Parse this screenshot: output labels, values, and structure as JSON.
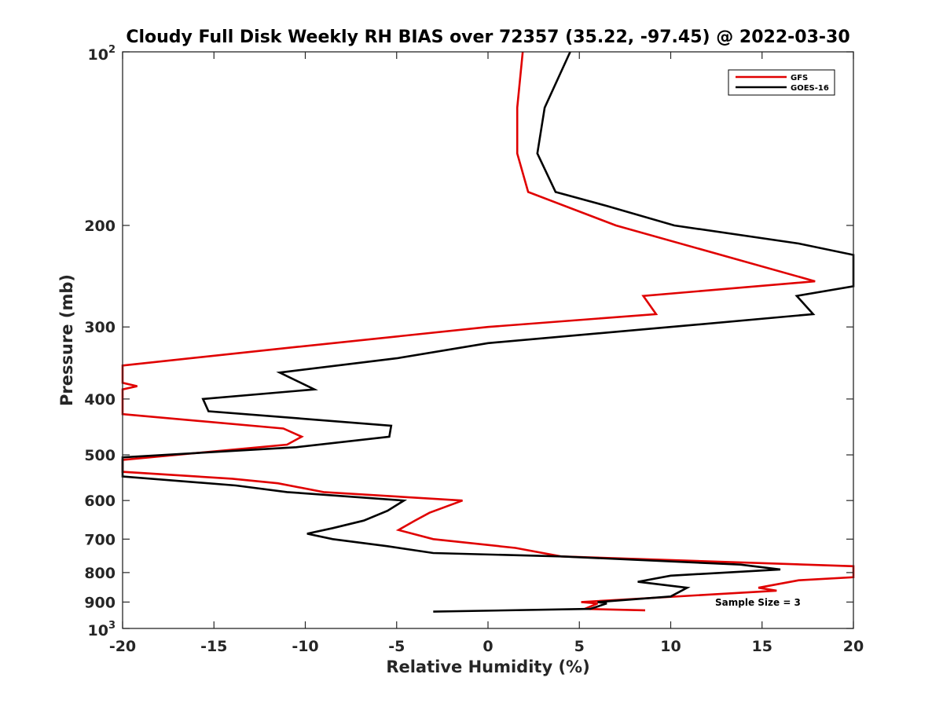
{
  "chart_data": {
    "type": "line",
    "title": "Cloudy Full Disk Weekly RH BIAS over 72357 (35.22, -97.45) @ 2022-03-30",
    "xlabel": "Relative Humidity (%)",
    "ylabel": "Pressure (mb)",
    "xlim": [
      -20,
      20
    ],
    "ylim": [
      100,
      1000
    ],
    "y_scale": "log",
    "y_reversed": true,
    "x_ticks": [
      "-20",
      "-15",
      "-10",
      "-5",
      "0",
      "5",
      "10",
      "15",
      "20"
    ],
    "y_ticks": [
      {
        "value": 200,
        "label": "200"
      },
      {
        "value": 300,
        "label": "300"
      },
      {
        "value": 400,
        "label": "400"
      },
      {
        "value": 500,
        "label": "500"
      },
      {
        "value": 600,
        "label": "600"
      },
      {
        "value": 700,
        "label": "700"
      },
      {
        "value": 800,
        "label": "800"
      },
      {
        "value": 900,
        "label": "900"
      }
    ],
    "y_edge_labels": {
      "top_base": "10",
      "top_exp": "2",
      "bottom_base": "10",
      "bottom_exp": "3"
    },
    "legend": {
      "placement": "top-right"
    },
    "annotation": "Sample Size = 3",
    "series": [
      {
        "name": "GFS",
        "color": "#e00000",
        "points": [
          {
            "x": 1.9,
            "p": 100
          },
          {
            "x": 1.6,
            "p": 125
          },
          {
            "x": 1.6,
            "p": 150
          },
          {
            "x": 2.2,
            "p": 175
          },
          {
            "x": 7.0,
            "p": 200
          },
          {
            "x": 17.9,
            "p": 250
          },
          {
            "x": 8.5,
            "p": 265
          },
          {
            "x": 9.2,
            "p": 285
          },
          {
            "x": 0.0,
            "p": 300
          },
          {
            "x": -10.5,
            "p": 325
          },
          {
            "x": -20.0,
            "p": 350
          },
          {
            "x": -20.0,
            "p": 375
          },
          {
            "x": -19.2,
            "p": 380
          },
          {
            "x": -20.0,
            "p": 385
          },
          {
            "x": -20.0,
            "p": 425
          },
          {
            "x": -11.2,
            "p": 450
          },
          {
            "x": -10.2,
            "p": 465
          },
          {
            "x": -11.0,
            "p": 480
          },
          {
            "x": -20.0,
            "p": 510
          },
          {
            "x": -20.0,
            "p": 535
          },
          {
            "x": -14.0,
            "p": 550
          },
          {
            "x": -11.5,
            "p": 560
          },
          {
            "x": -9.0,
            "p": 580
          },
          {
            "x": -1.4,
            "p": 600
          },
          {
            "x": -3.2,
            "p": 630
          },
          {
            "x": -4.0,
            "p": 650
          },
          {
            "x": -4.9,
            "p": 675
          },
          {
            "x": -3.0,
            "p": 700
          },
          {
            "x": 1.5,
            "p": 725
          },
          {
            "x": 4.0,
            "p": 750
          },
          {
            "x": 20.0,
            "p": 780
          },
          {
            "x": 20.0,
            "p": 815
          },
          {
            "x": 17.0,
            "p": 825
          },
          {
            "x": 14.8,
            "p": 850
          },
          {
            "x": 15.8,
            "p": 860
          },
          {
            "x": 5.1,
            "p": 900
          },
          {
            "x": 6.0,
            "p": 905
          },
          {
            "x": 5.3,
            "p": 925
          },
          {
            "x": 8.6,
            "p": 930
          }
        ]
      },
      {
        "name": "GOES-16",
        "color": "#000000",
        "points": [
          {
            "x": 4.5,
            "p": 100
          },
          {
            "x": 3.1,
            "p": 125
          },
          {
            "x": 2.7,
            "p": 150
          },
          {
            "x": 3.7,
            "p": 175
          },
          {
            "x": 6.5,
            "p": 185
          },
          {
            "x": 10.2,
            "p": 200
          },
          {
            "x": 17.0,
            "p": 215
          },
          {
            "x": 20.0,
            "p": 225
          },
          {
            "x": 20.0,
            "p": 255
          },
          {
            "x": 16.9,
            "p": 265
          },
          {
            "x": 17.8,
            "p": 285
          },
          {
            "x": 10.0,
            "p": 300
          },
          {
            "x": 0.0,
            "p": 320
          },
          {
            "x": -5.0,
            "p": 340
          },
          {
            "x": -11.4,
            "p": 360
          },
          {
            "x": -9.5,
            "p": 385
          },
          {
            "x": -15.6,
            "p": 400
          },
          {
            "x": -15.3,
            "p": 420
          },
          {
            "x": -5.3,
            "p": 445
          },
          {
            "x": -5.4,
            "p": 465
          },
          {
            "x": -10.5,
            "p": 485
          },
          {
            "x": -20.0,
            "p": 505
          },
          {
            "x": -20.0,
            "p": 545
          },
          {
            "x": -13.8,
            "p": 565
          },
          {
            "x": -11.0,
            "p": 580
          },
          {
            "x": -4.6,
            "p": 600
          },
          {
            "x": -5.5,
            "p": 625
          },
          {
            "x": -6.8,
            "p": 650
          },
          {
            "x": -8.5,
            "p": 670
          },
          {
            "x": -9.9,
            "p": 685
          },
          {
            "x": -8.5,
            "p": 700
          },
          {
            "x": -5.5,
            "p": 720
          },
          {
            "x": -3.0,
            "p": 740
          },
          {
            "x": 4.0,
            "p": 750
          },
          {
            "x": 13.8,
            "p": 775
          },
          {
            "x": 16.0,
            "p": 790
          },
          {
            "x": 10.0,
            "p": 810
          },
          {
            "x": 8.2,
            "p": 830
          },
          {
            "x": 10.9,
            "p": 850
          },
          {
            "x": 10.0,
            "p": 880
          },
          {
            "x": 6.0,
            "p": 900
          },
          {
            "x": 6.5,
            "p": 905
          },
          {
            "x": 5.6,
            "p": 925
          },
          {
            "x": -3.0,
            "p": 935
          }
        ]
      }
    ]
  }
}
